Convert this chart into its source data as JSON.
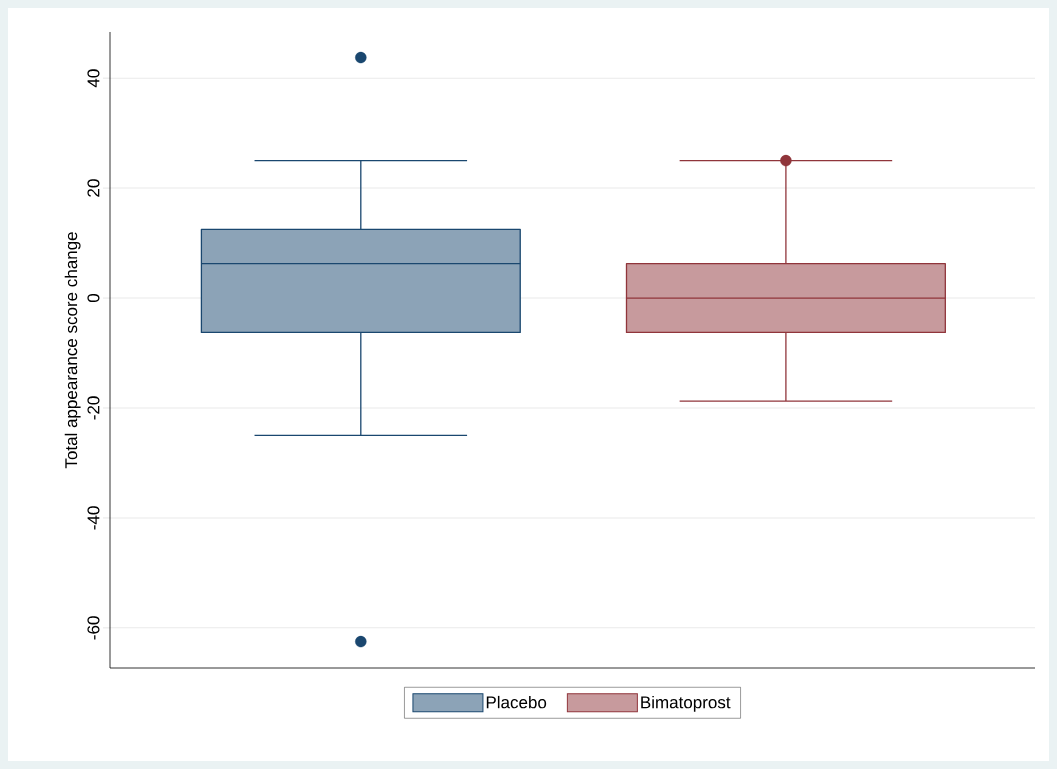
{
  "chart_data": {
    "type": "box",
    "ylabel": "Total appearance score change",
    "categories": [
      null,
      null
    ],
    "ylim": [
      -67.3,
      48.4
    ],
    "yticks": [
      -60,
      -40,
      -20,
      0,
      20,
      40
    ],
    "grid": "y",
    "legend": "bottom",
    "series": [
      {
        "name": "Placebo",
        "color": "#1a476f",
        "boxes": [
          {
            "low": -25,
            "q1": -6.25,
            "median": 6.25,
            "q3": 12.5,
            "high": 25,
            "outliers": [
              43.75,
              -62.5
            ]
          },
          null
        ]
      },
      {
        "name": "Bimatoprost",
        "color": "#90353b",
        "boxes": [
          null,
          {
            "low": -18.75,
            "q1": -6.25,
            "median": 0,
            "q3": 6.25,
            "high": 25,
            "outliers": [
              25
            ]
          }
        ]
      }
    ]
  }
}
